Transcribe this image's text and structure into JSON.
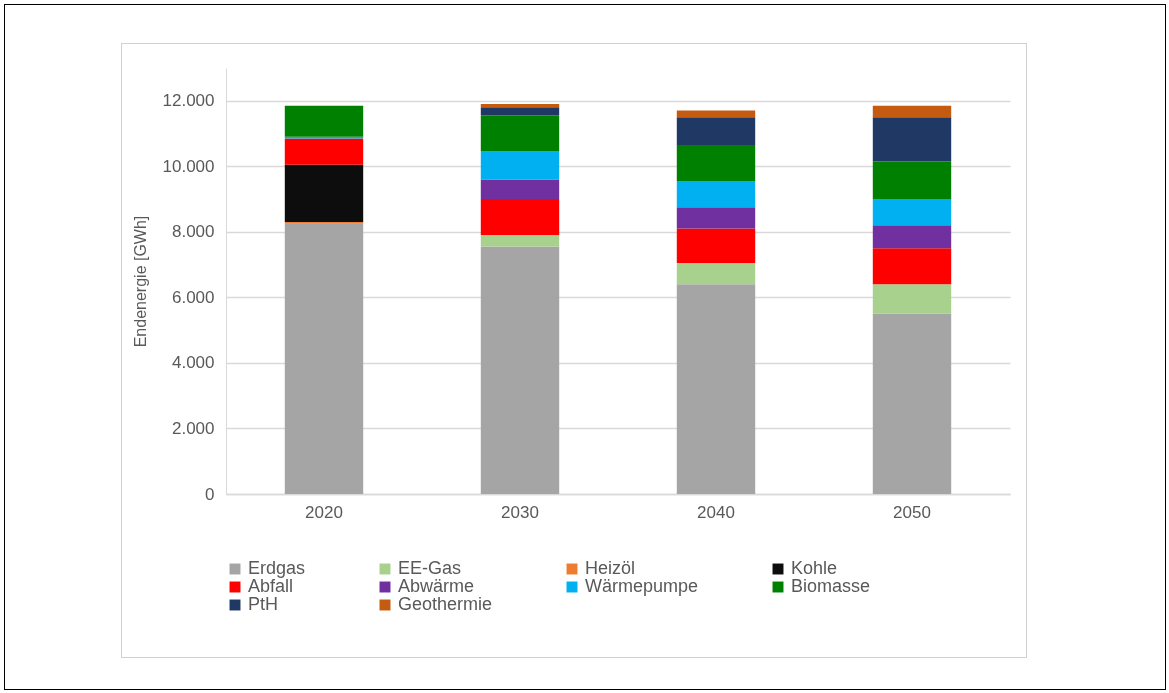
{
  "chart_data": {
    "type": "bar",
    "stacked": true,
    "ylabel": "Endenergie [GWh]",
    "categories": [
      "2020",
      "2030",
      "2040",
      "2050"
    ],
    "series": [
      {
        "name": "Erdgas",
        "color": "#a5a5a5",
        "values": [
          8250,
          7550,
          6400,
          5500
        ]
      },
      {
        "name": "EE-Gas",
        "color": "#a9d18e",
        "values": [
          0,
          350,
          650,
          900
        ]
      },
      {
        "name": "Heizöl",
        "color": "#ed7d31",
        "values": [
          50,
          0,
          0,
          0
        ]
      },
      {
        "name": "Kohle",
        "color": "#0d0d0d",
        "values": [
          1750,
          0,
          0,
          0
        ]
      },
      {
        "name": "Abfall",
        "color": "#ff0000",
        "values": [
          800,
          1100,
          1050,
          1100
        ]
      },
      {
        "name": "Abwärme",
        "color": "#7030a0",
        "values": [
          0,
          600,
          650,
          700
        ]
      },
      {
        "name": "Wärmepumpe",
        "color": "#00b0f0",
        "values": [
          50,
          850,
          800,
          800
        ]
      },
      {
        "name": "Biomasse",
        "color": "#008000",
        "values": [
          950,
          1100,
          1100,
          1150
        ]
      },
      {
        "name": "PtH",
        "color": "#203864",
        "values": [
          0,
          250,
          850,
          1350
        ]
      },
      {
        "name": "Geothermie",
        "color": "#c55a11",
        "values": [
          0,
          100,
          200,
          350
        ]
      }
    ],
    "ylim": [
      0,
      13000
    ],
    "yticks": [
      {
        "value": 0,
        "label": "0"
      },
      {
        "value": 2000,
        "label": "2.000"
      },
      {
        "value": 4000,
        "label": "4.000"
      },
      {
        "value": 6000,
        "label": "6.000"
      },
      {
        "value": 8000,
        "label": "8.000"
      },
      {
        "value": 10000,
        "label": "10.000"
      },
      {
        "value": 12000,
        "label": "12.000"
      }
    ],
    "grid": "y",
    "legend": "bottom"
  }
}
